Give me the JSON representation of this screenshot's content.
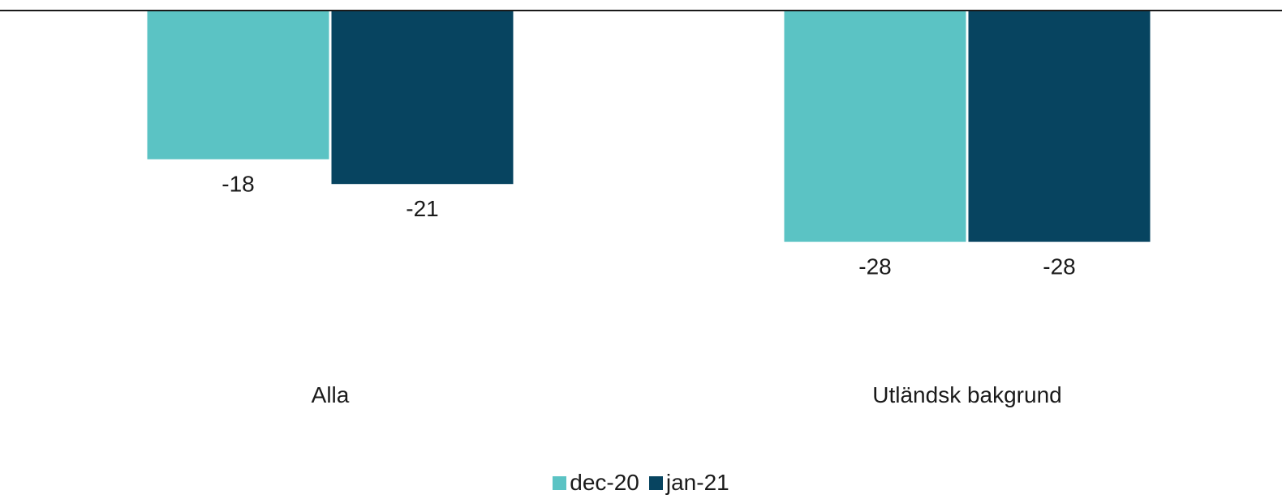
{
  "chart_data": {
    "type": "bar",
    "categories": [
      "Alla",
      "Utländsk bakgrund"
    ],
    "series": [
      {
        "name": "dec-20",
        "values": [
          -18,
          -28
        ],
        "color": "#5bc3c4"
      },
      {
        "name": "jan-21",
        "values": [
          -21,
          -28
        ],
        "color": "#074460"
      }
    ],
    "title": "",
    "xlabel": "",
    "ylabel": "",
    "data_labels": true,
    "legend_position": "bottom",
    "grid": false
  }
}
